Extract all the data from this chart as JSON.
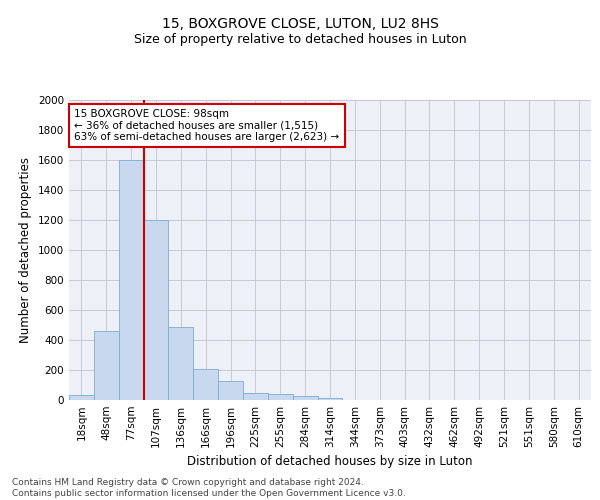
{
  "title1": "15, BOXGROVE CLOSE, LUTON, LU2 8HS",
  "title2": "Size of property relative to detached houses in Luton",
  "xlabel": "Distribution of detached houses by size in Luton",
  "ylabel": "Number of detached properties",
  "categories": [
    "18sqm",
    "48sqm",
    "77sqm",
    "107sqm",
    "136sqm",
    "166sqm",
    "196sqm",
    "225sqm",
    "255sqm",
    "284sqm",
    "314sqm",
    "344sqm",
    "373sqm",
    "403sqm",
    "432sqm",
    "462sqm",
    "492sqm",
    "521sqm",
    "551sqm",
    "580sqm",
    "610sqm"
  ],
  "values": [
    35,
    460,
    1600,
    1200,
    490,
    210,
    125,
    50,
    40,
    25,
    15,
    0,
    0,
    0,
    0,
    0,
    0,
    0,
    0,
    0,
    0
  ],
  "bar_color": "#c8d8ee",
  "bar_edge_color": "#7aafd4",
  "vline_color": "#cc0000",
  "annotation_text": "15 BOXGROVE CLOSE: 98sqm\n← 36% of detached houses are smaller (1,515)\n63% of semi-detached houses are larger (2,623) →",
  "annotation_box_color": "#ffffff",
  "annotation_box_edge": "#cc0000",
  "ylim": [
    0,
    2000
  ],
  "yticks": [
    0,
    200,
    400,
    600,
    800,
    1000,
    1200,
    1400,
    1600,
    1800,
    2000
  ],
  "grid_color": "#c8c8d8",
  "background_color": "#eef0f8",
  "footer_text": "Contains HM Land Registry data © Crown copyright and database right 2024.\nContains public sector information licensed under the Open Government Licence v3.0.",
  "title1_fontsize": 10,
  "title2_fontsize": 9,
  "xlabel_fontsize": 8.5,
  "ylabel_fontsize": 8.5,
  "tick_fontsize": 7.5,
  "ann_fontsize": 7.5,
  "footer_fontsize": 6.5
}
